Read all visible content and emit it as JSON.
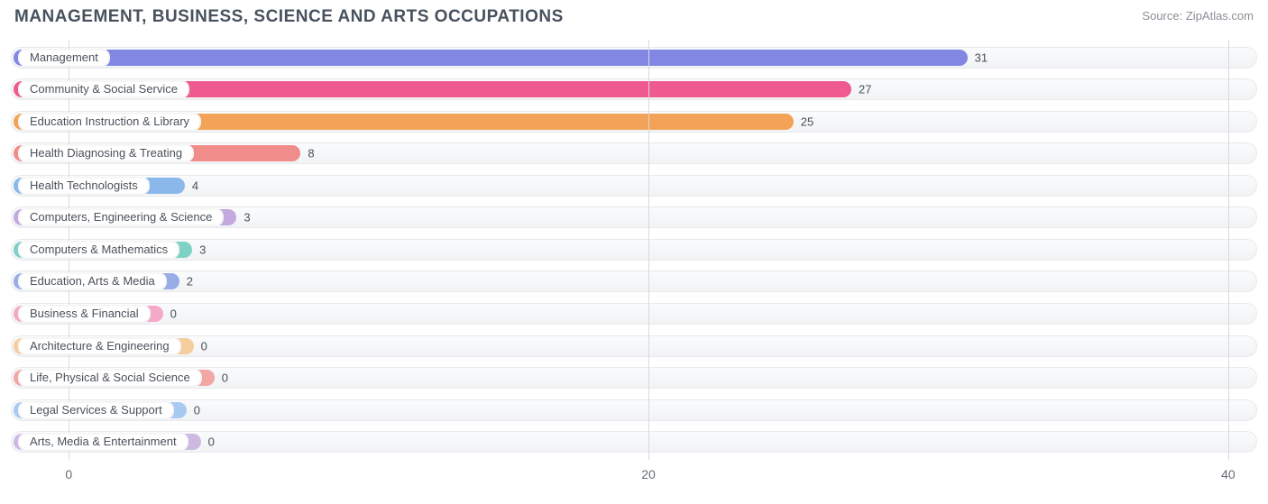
{
  "title": "MANAGEMENT, BUSINESS, SCIENCE AND ARTS OCCUPATIONS",
  "source_label": "Source:",
  "source_name": "ZipAtlas.com",
  "chart": {
    "type": "bar",
    "orientation": "horizontal",
    "xlim": [
      -2,
      41
    ],
    "xticks": [
      0,
      20,
      40
    ],
    "background_color": "#ffffff",
    "grid_color": "#d7d9dc",
    "track_bg_top": "#fafbfc",
    "track_bg_bottom": "#f1f3f5",
    "track_border": "#e7e9ec",
    "pill_bg": "#ffffff",
    "label_color": "#4a515a",
    "title_color": "#47525e",
    "title_fontsize": 19,
    "label_fontsize": 13,
    "tick_fontsize": 14,
    "bar_radius": 10,
    "series": [
      {
        "label": "Management",
        "value": 31,
        "color": "#8187e2"
      },
      {
        "label": "Community & Social Service",
        "value": 27,
        "color": "#ef5b8f"
      },
      {
        "label": "Education Instruction & Library",
        "value": 25,
        "color": "#f2a357"
      },
      {
        "label": "Health Diagnosing & Treating",
        "value": 8,
        "color": "#f08d8b"
      },
      {
        "label": "Health Technologists",
        "value": 4,
        "color": "#8bb8ea"
      },
      {
        "label": "Computers, Engineering & Science",
        "value": 3,
        "color": "#c3a9de"
      },
      {
        "label": "Computers & Mathematics",
        "value": 3,
        "color": "#7ed1c5"
      },
      {
        "label": "Education, Arts & Media",
        "value": 2,
        "color": "#99ace6"
      },
      {
        "label": "Business & Financial",
        "value": 0,
        "color": "#f4a9c6"
      },
      {
        "label": "Architecture & Engineering",
        "value": 0,
        "color": "#f6cd9e"
      },
      {
        "label": "Life, Physical & Social Science",
        "value": 0,
        "color": "#f3a6a4"
      },
      {
        "label": "Legal Services & Support",
        "value": 0,
        "color": "#a9caf0"
      },
      {
        "label": "Arts, Media & Entertainment",
        "value": 0,
        "color": "#cdb9e2"
      }
    ]
  }
}
